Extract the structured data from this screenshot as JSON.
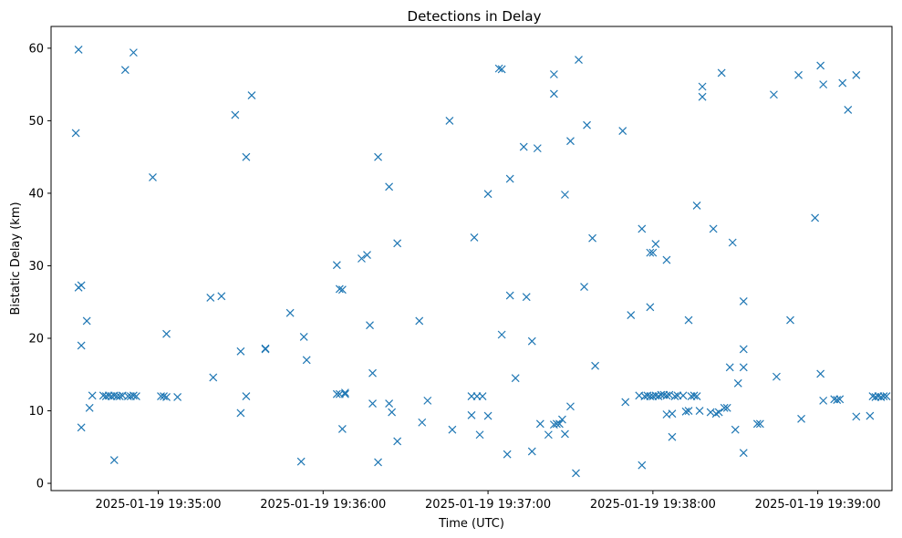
{
  "chart_data": {
    "type": "scatter",
    "title": "Detections in Delay",
    "xlabel": "Time (UTC)",
    "ylabel": "Bistatic Delay (km)",
    "marker": "x",
    "color": "#1f77b4",
    "xlim": [
      "2025-01-19 19:34:21",
      "2025-01-19 19:39:27"
    ],
    "ylim": [
      -1,
      63
    ],
    "x_ticks": [
      "2025-01-19 19:35:00",
      "2025-01-19 19:36:00",
      "2025-01-19 19:37:00",
      "2025-01-19 19:38:00",
      "2025-01-19 19:39:00"
    ],
    "y_ticks": [
      0,
      10,
      20,
      30,
      40,
      50,
      60
    ],
    "grid": false,
    "series": [
      {
        "points": [
          [
            "19:34:30",
            48.3
          ],
          [
            "19:34:31",
            59.8
          ],
          [
            "19:34:31",
            27.0
          ],
          [
            "19:34:32",
            27.3
          ],
          [
            "19:34:32",
            19.0
          ],
          [
            "19:34:32",
            7.7
          ],
          [
            "19:34:34",
            22.4
          ],
          [
            "19:34:35",
            10.4
          ],
          [
            "19:34:36",
            12.1
          ],
          [
            "19:34:40",
            12.1
          ],
          [
            "19:34:41",
            12.0
          ],
          [
            "19:34:42",
            12.1
          ],
          [
            "19:34:43",
            12.0
          ],
          [
            "19:34:44",
            3.2
          ],
          [
            "19:34:44",
            12.1
          ],
          [
            "19:34:45",
            12.0
          ],
          [
            "19:34:46",
            12.0
          ],
          [
            "19:34:47",
            12.1
          ],
          [
            "19:34:48",
            57.0
          ],
          [
            "19:34:49",
            12.0
          ],
          [
            "19:34:50",
            12.0
          ],
          [
            "19:34:51",
            59.4
          ],
          [
            "19:34:51",
            12.1
          ],
          [
            "19:34:52",
            12.0
          ],
          [
            "19:34:58",
            42.2
          ],
          [
            "19:35:01",
            12.0
          ],
          [
            "19:35:02",
            12.0
          ],
          [
            "19:35:03",
            20.6
          ],
          [
            "19:35:03",
            11.9
          ],
          [
            "19:35:07",
            11.9
          ],
          [
            "19:35:19",
            25.6
          ],
          [
            "19:35:20",
            14.6
          ],
          [
            "19:35:23",
            25.8
          ],
          [
            "19:35:28",
            50.8
          ],
          [
            "19:35:30",
            18.2
          ],
          [
            "19:35:30",
            9.7
          ],
          [
            "19:35:32",
            45.0
          ],
          [
            "19:35:32",
            12.0
          ],
          [
            "19:35:34",
            53.5
          ],
          [
            "19:35:39",
            18.5
          ],
          [
            "19:35:39",
            18.6
          ],
          [
            "19:35:48",
            23.5
          ],
          [
            "19:35:52",
            3.0
          ],
          [
            "19:35:53",
            20.2
          ],
          [
            "19:35:54",
            17.0
          ],
          [
            "19:36:05",
            30.1
          ],
          [
            "19:36:05",
            12.3
          ],
          [
            "19:36:06",
            12.3
          ],
          [
            "19:36:06",
            26.8
          ],
          [
            "19:36:07",
            26.7
          ],
          [
            "19:36:07",
            7.5
          ],
          [
            "19:36:08",
            12.3
          ],
          [
            "19:36:08",
            12.5
          ],
          [
            "19:36:14",
            31.0
          ],
          [
            "19:36:16",
            31.5
          ],
          [
            "19:36:17",
            21.8
          ],
          [
            "19:36:18",
            15.2
          ],
          [
            "19:36:18",
            11.0
          ],
          [
            "19:36:20",
            45.0
          ],
          [
            "19:36:20",
            2.9
          ],
          [
            "19:36:24",
            40.9
          ],
          [
            "19:36:24",
            11.0
          ],
          [
            "19:36:25",
            9.8
          ],
          [
            "19:36:27",
            5.8
          ],
          [
            "19:36:27",
            33.1
          ],
          [
            "19:36:35",
            22.4
          ],
          [
            "19:36:36",
            8.4
          ],
          [
            "19:36:38",
            11.4
          ],
          [
            "19:36:46",
            50.0
          ],
          [
            "19:36:47",
            7.4
          ],
          [
            "19:36:54",
            12.0
          ],
          [
            "19:36:54",
            9.4
          ],
          [
            "19:36:55",
            33.9
          ],
          [
            "19:36:56",
            12.0
          ],
          [
            "19:36:57",
            6.7
          ],
          [
            "19:36:58",
            12.0
          ],
          [
            "19:37:00",
            39.9
          ],
          [
            "19:37:00",
            9.3
          ],
          [
            "19:37:04",
            57.2
          ],
          [
            "19:37:05",
            57.1
          ],
          [
            "19:37:05",
            20.5
          ],
          [
            "19:37:07",
            4.0
          ],
          [
            "19:37:08",
            25.9
          ],
          [
            "19:37:08",
            42.0
          ],
          [
            "19:37:10",
            14.5
          ],
          [
            "19:37:13",
            46.4
          ],
          [
            "19:37:14",
            25.7
          ],
          [
            "19:37:16",
            4.4
          ],
          [
            "19:37:16",
            19.6
          ],
          [
            "19:37:18",
            46.2
          ],
          [
            "19:37:19",
            8.2
          ],
          [
            "19:37:22",
            6.7
          ],
          [
            "19:37:24",
            53.7
          ],
          [
            "19:37:24",
            56.4
          ],
          [
            "19:37:24",
            8.1
          ],
          [
            "19:37:25",
            8.2
          ],
          [
            "19:37:26",
            8.2
          ],
          [
            "19:37:27",
            8.8
          ],
          [
            "19:37:28",
            39.8
          ],
          [
            "19:37:28",
            6.8
          ],
          [
            "19:37:30",
            47.2
          ],
          [
            "19:37:30",
            10.6
          ],
          [
            "19:37:32",
            1.4
          ],
          [
            "19:37:33",
            58.4
          ],
          [
            "19:37:35",
            27.1
          ],
          [
            "19:37:36",
            49.4
          ],
          [
            "19:37:38",
            33.8
          ],
          [
            "19:37:39",
            16.2
          ],
          [
            "19:37:49",
            48.6
          ],
          [
            "19:37:50",
            11.2
          ],
          [
            "19:37:52",
            23.2
          ],
          [
            "19:37:55",
            12.1
          ],
          [
            "19:37:56",
            35.1
          ],
          [
            "19:37:56",
            2.5
          ],
          [
            "19:37:57",
            12.0
          ],
          [
            "19:37:58",
            12.1
          ],
          [
            "19:37:59",
            31.8
          ],
          [
            "19:37:59",
            24.3
          ],
          [
            "19:37:59",
            12.0
          ],
          [
            "19:38:00",
            31.8
          ],
          [
            "19:38:00",
            12.0
          ],
          [
            "19:38:01",
            33.0
          ],
          [
            "19:38:01",
            12.1
          ],
          [
            "19:38:02",
            12.0
          ],
          [
            "19:38:03",
            12.2
          ],
          [
            "19:38:04",
            12.2
          ],
          [
            "19:38:05",
            30.8
          ],
          [
            "19:38:05",
            9.5
          ],
          [
            "19:38:05",
            12.1
          ],
          [
            "19:38:06",
            12.2
          ],
          [
            "19:38:07",
            6.4
          ],
          [
            "19:38:07",
            9.6
          ],
          [
            "19:38:08",
            12.0
          ],
          [
            "19:38:09",
            12.1
          ],
          [
            "19:38:11",
            12.1
          ],
          [
            "19:38:12",
            9.9
          ],
          [
            "19:38:13",
            22.5
          ],
          [
            "19:38:13",
            10.0
          ],
          [
            "19:38:14",
            12.0
          ],
          [
            "19:38:15",
            12.1
          ],
          [
            "19:38:16",
            38.3
          ],
          [
            "19:38:16",
            12.0
          ],
          [
            "19:38:17",
            10.0
          ],
          [
            "19:38:18",
            53.3
          ],
          [
            "19:38:18",
            54.7
          ],
          [
            "19:38:21",
            9.8
          ],
          [
            "19:38:22",
            35.1
          ],
          [
            "19:38:23",
            9.6
          ],
          [
            "19:38:24",
            9.8
          ],
          [
            "19:38:25",
            56.6
          ],
          [
            "19:38:26",
            10.4
          ],
          [
            "19:38:27",
            10.4
          ],
          [
            "19:38:28",
            16.0
          ],
          [
            "19:38:29",
            33.2
          ],
          [
            "19:38:30",
            7.4
          ],
          [
            "19:38:31",
            13.8
          ],
          [
            "19:38:33",
            25.1
          ],
          [
            "19:38:33",
            18.5
          ],
          [
            "19:38:33",
            16.0
          ],
          [
            "19:38:33",
            4.2
          ],
          [
            "19:38:38",
            8.2
          ],
          [
            "19:38:39",
            8.2
          ],
          [
            "19:38:44",
            53.6
          ],
          [
            "19:38:45",
            14.7
          ],
          [
            "19:38:50",
            22.5
          ],
          [
            "19:38:53",
            56.3
          ],
          [
            "19:38:54",
            8.9
          ],
          [
            "19:38:59",
            36.6
          ],
          [
            "19:39:01",
            57.6
          ],
          [
            "19:39:01",
            15.1
          ],
          [
            "19:39:02",
            55.0
          ],
          [
            "19:39:02",
            11.4
          ],
          [
            "19:39:06",
            11.6
          ],
          [
            "19:39:07",
            11.5
          ],
          [
            "19:39:08",
            11.6
          ],
          [
            "19:39:09",
            55.2
          ],
          [
            "19:39:11",
            51.5
          ],
          [
            "19:39:14",
            56.3
          ],
          [
            "19:39:14",
            9.2
          ],
          [
            "19:39:19",
            9.3
          ],
          [
            "19:39:20",
            12.0
          ],
          [
            "19:39:21",
            11.9
          ],
          [
            "19:39:22",
            12.0
          ],
          [
            "19:39:23",
            11.9
          ],
          [
            "19:39:24",
            12.0
          ],
          [
            "19:39:25",
            12.0
          ]
        ]
      }
    ]
  }
}
